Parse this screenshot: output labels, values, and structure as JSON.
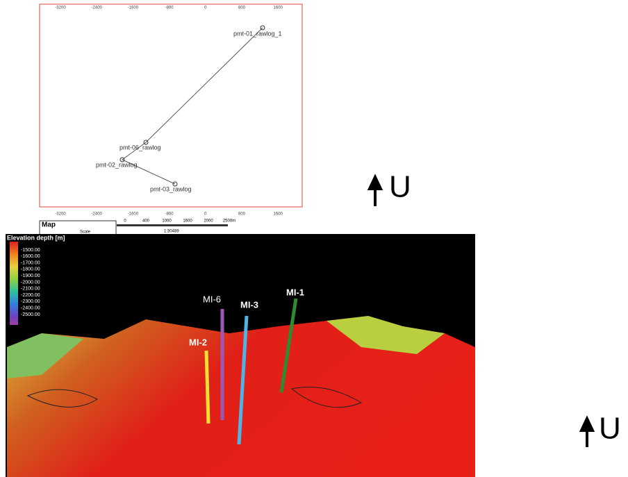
{
  "map": {
    "x_tick_labels": [
      "-3200",
      "-2400",
      "-1600",
      "-800",
      "0",
      "800",
      "1600"
    ],
    "wells": [
      "pmt-01_rawlog_1",
      "pmt-06_rawlog",
      "pmt-02_rawlog",
      "pmt-03_rawlog"
    ],
    "legend_title": "Map",
    "legend_scale": "Scale",
    "scale_labels": [
      "0",
      "400",
      "1000",
      "1600",
      "2000",
      "2500m"
    ],
    "scale_ratio": "1:30489"
  },
  "surface": {
    "colorbar_title": "Elevation depth [m]",
    "colorbar_labels": [
      "-1500.00",
      "-1600.00",
      "-1700.00",
      "-1800.00",
      "-1900.00",
      "-2000.00",
      "-2100.00",
      "-2200.00",
      "-2300.00",
      "-2400.00",
      "-2500.00"
    ],
    "wells": [
      {
        "label": "MI-6",
        "color": "#9b59b6"
      },
      {
        "label": "MI-3",
        "color": "#4fb3e8"
      },
      {
        "label": "MI-1",
        "color": "#2e8b2e"
      },
      {
        "label": "MI-2",
        "color": "#f2e030"
      }
    ]
  },
  "north_labels": [
    "U",
    "U"
  ]
}
